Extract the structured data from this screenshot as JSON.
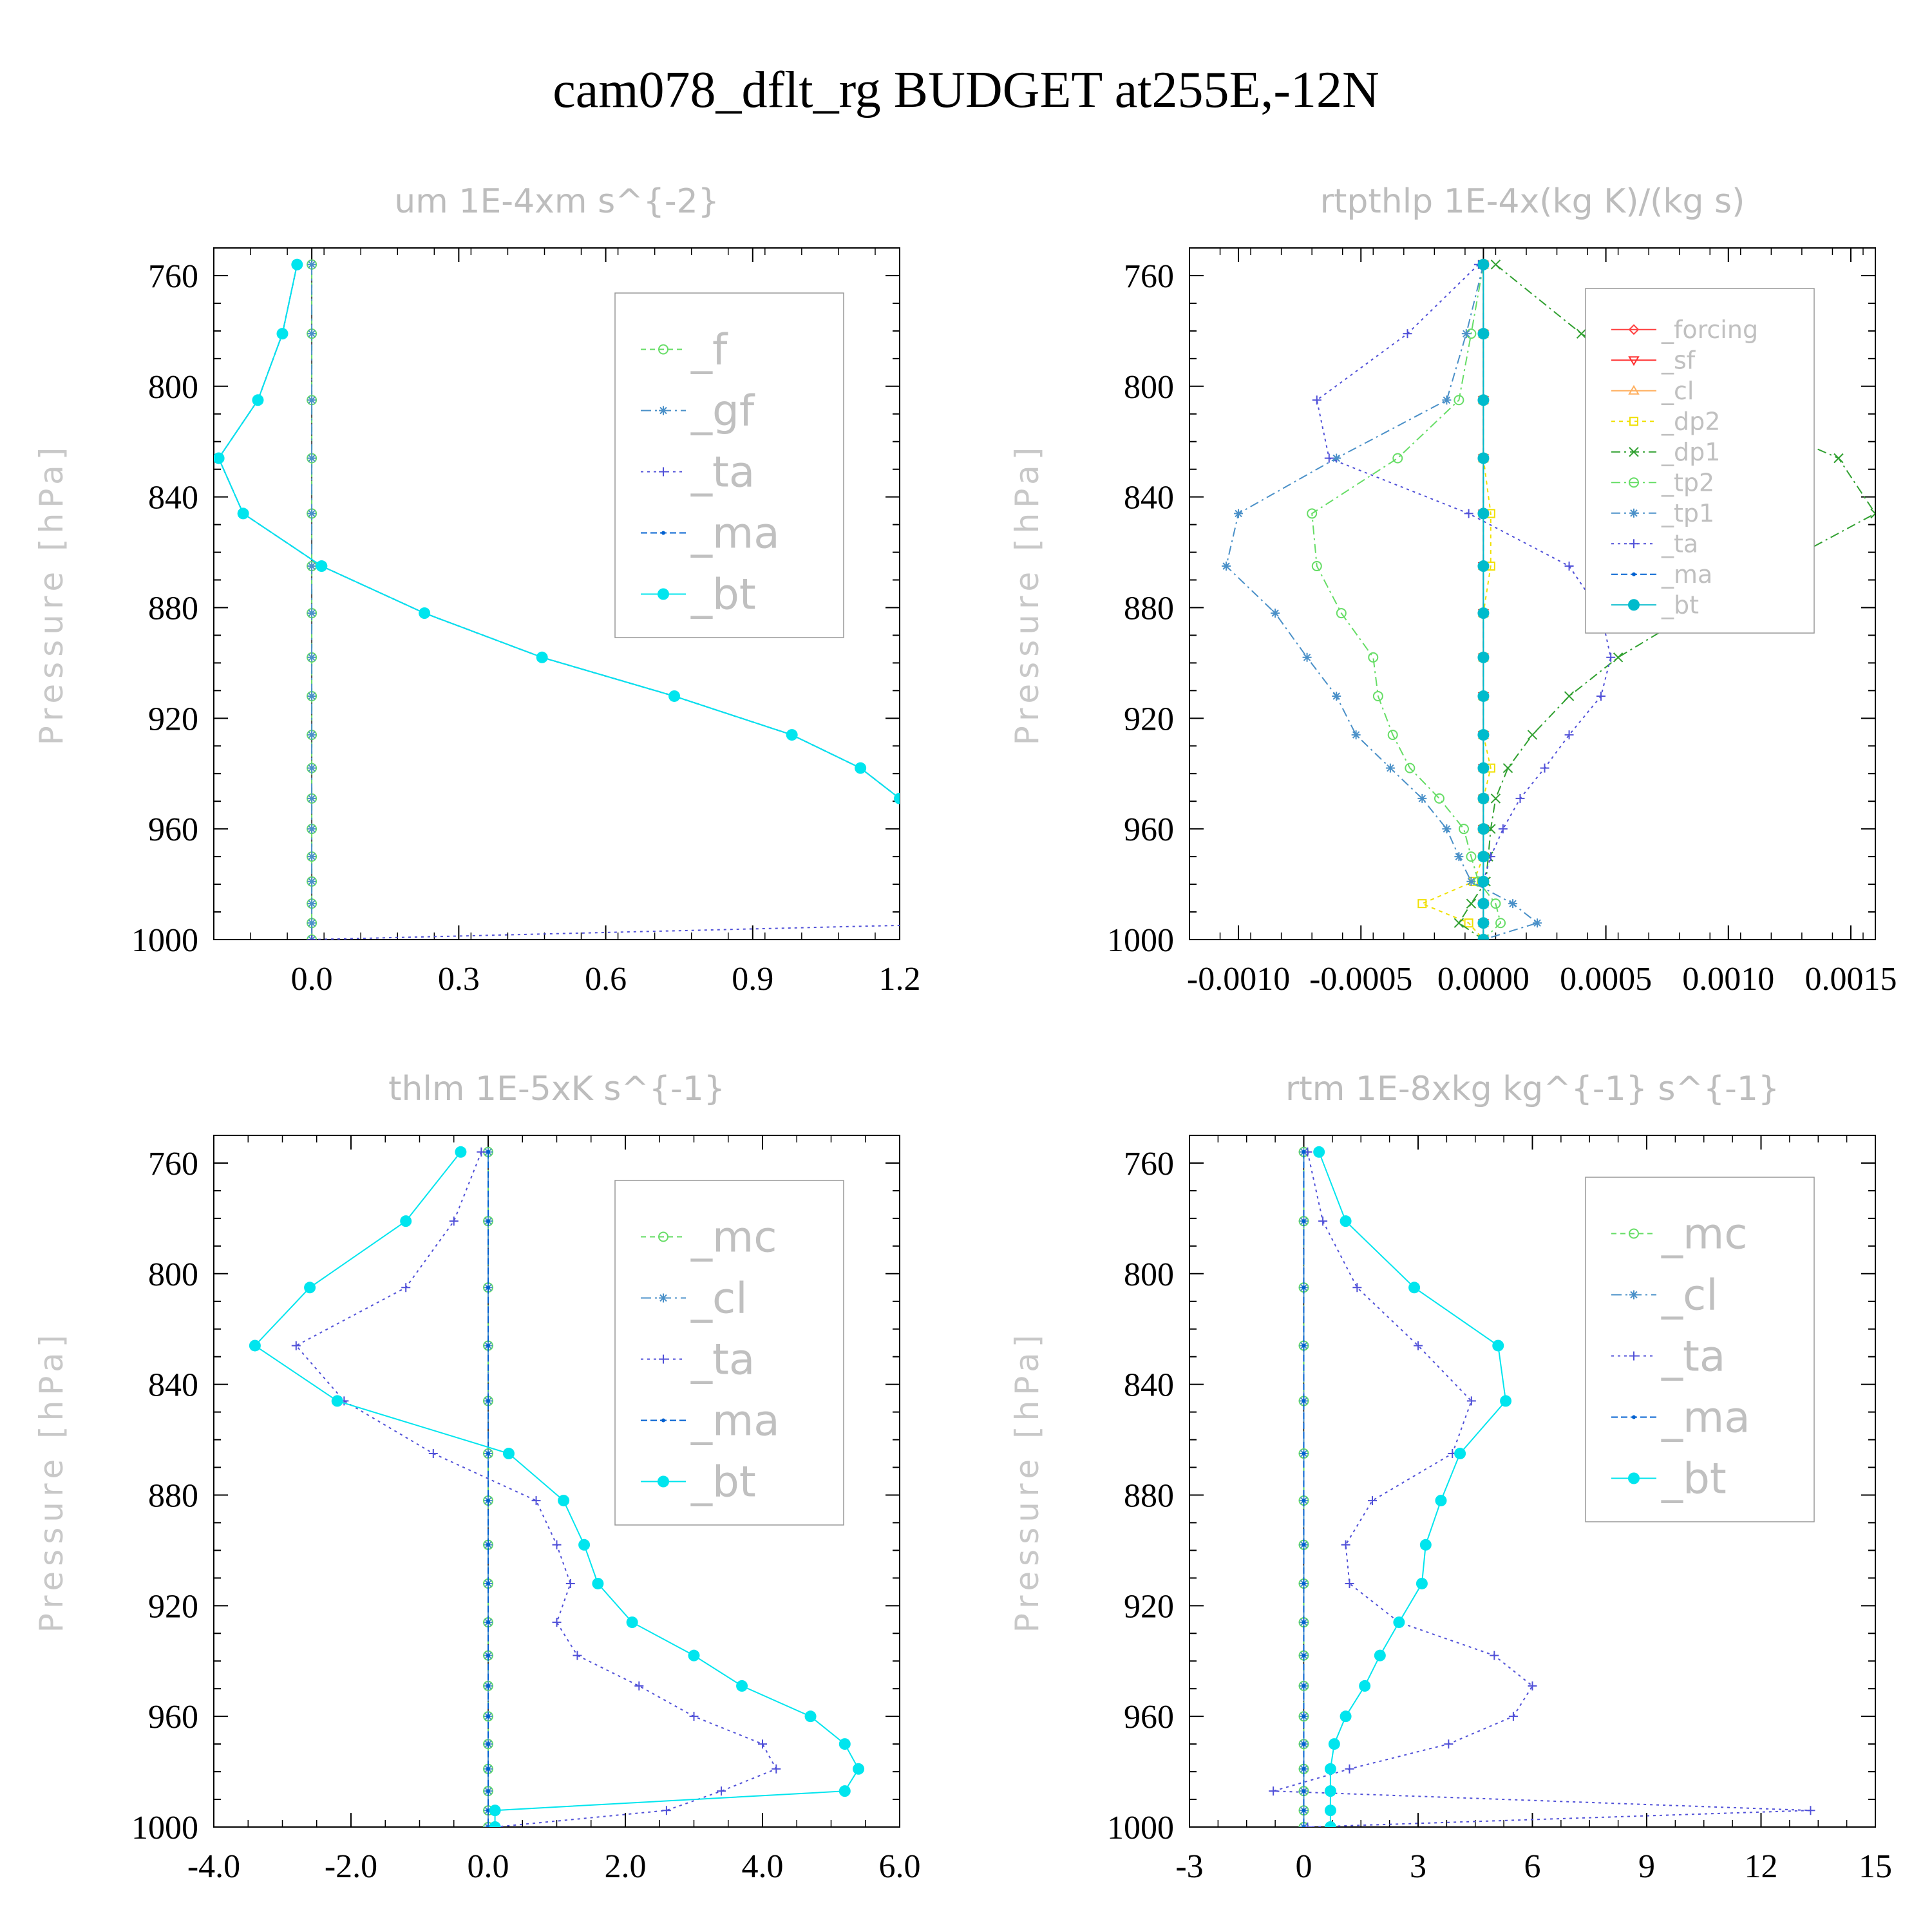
{
  "title": "cam078_dflt_rg  BUDGET at255E,-12N",
  "chart_data": [
    {
      "type": "line",
      "title": "um  1E-4xm s^{-2}",
      "ylabel": "Pressure [hPa]",
      "ylim": [
        750,
        1000
      ],
      "yticks": [
        760,
        800,
        840,
        880,
        920,
        960,
        1000
      ],
      "xlim": [
        -0.2,
        1.2
      ],
      "xticks": [
        0.0,
        0.3,
        0.6,
        0.9,
        1.2
      ],
      "xtick_labels": [
        "0.0",
        "0.3",
        "0.6",
        "0.9",
        "1.2"
      ],
      "legend_size": "large",
      "levels": [
        756,
        781,
        805,
        826,
        846,
        865,
        882,
        898,
        912,
        926,
        938,
        949,
        960,
        970,
        979,
        987,
        994,
        1000
      ],
      "series": [
        {
          "name": "_f",
          "color": "#66dd66",
          "marker": "circle-open",
          "dash": "8,6",
          "values": [
            0,
            0,
            0,
            0,
            0,
            0,
            0,
            0,
            0,
            0,
            0,
            0,
            0,
            0,
            0,
            0,
            0,
            0
          ]
        },
        {
          "name": "_gf",
          "color": "#4a90c8",
          "marker": "star",
          "dash": "16,6,3,6",
          "values": [
            0,
            0,
            0,
            0,
            0,
            0,
            0,
            0,
            0,
            0,
            0,
            0,
            0,
            0,
            0,
            0,
            0,
            0
          ]
        },
        {
          "name": "_ta",
          "color": "#5050d8",
          "marker": "plus",
          "dash": "4,6",
          "values": [
            -0.03,
            -0.06,
            -0.11,
            -0.19,
            -0.14,
            0.02,
            0.23,
            0.47,
            0.74,
            0.98,
            1.12,
            1.2,
            1.25,
            1.3,
            1.35,
            1.38,
            1.4,
            0.0
          ]
        },
        {
          "name": "_ma",
          "color": "#0060d0",
          "marker": "dot",
          "dash": "10,5",
          "values": [
            -0.03,
            -0.06,
            -0.11,
            -0.19,
            -0.14,
            0.02,
            0.23,
            0.47,
            0.74,
            0.98,
            1.12,
            1.2,
            1.25,
            1.3,
            1.35,
            1.38,
            1.4,
            1.4
          ]
        },
        {
          "name": "_bt",
          "color": "#00e5ee",
          "marker": "filled",
          "dash": "",
          "values": [
            -0.03,
            -0.06,
            -0.11,
            -0.19,
            -0.14,
            0.02,
            0.23,
            0.47,
            0.74,
            0.98,
            1.12,
            1.2,
            1.25,
            1.3,
            1.35,
            1.38,
            1.4,
            1.4
          ]
        }
      ]
    },
    {
      "type": "line",
      "title": "rtpthlp  1E-4x(kg K)/(kg s)",
      "ylabel": "Pressure [hPa]",
      "ylim": [
        750,
        1000
      ],
      "yticks": [
        760,
        800,
        840,
        880,
        920,
        960,
        1000
      ],
      "xlim": [
        -0.0012,
        0.0016
      ],
      "xticks": [
        -0.001,
        -0.0005,
        0.0,
        0.0005,
        0.001,
        0.0015
      ],
      "xtick_labels": [
        "-0.0010",
        "-0.0005",
        "0.0000",
        "0.0005",
        "0.0010",
        "0.0015"
      ],
      "legend_size": "small",
      "levels": [
        756,
        781,
        805,
        826,
        846,
        865,
        882,
        898,
        912,
        926,
        938,
        949,
        960,
        970,
        979,
        987,
        994,
        1000
      ],
      "series": [
        {
          "name": "_forcing",
          "color": "#ff4040",
          "marker": "diamond",
          "dash": "",
          "values": [
            0,
            0,
            0,
            0,
            0,
            0,
            0,
            0,
            0,
            0,
            0,
            0,
            0,
            0,
            0,
            0,
            0,
            0
          ]
        },
        {
          "name": "_sf",
          "color": "#ff3030",
          "marker": "triangle-down",
          "dash": "",
          "values": [
            0,
            0,
            0,
            0,
            0,
            0,
            0,
            0,
            0,
            0,
            0,
            0,
            0,
            0,
            0,
            0,
            0,
            0
          ]
        },
        {
          "name": "_cl",
          "color": "#ffb060",
          "marker": "triangle-up",
          "dash": "",
          "values": [
            0,
            0,
            0,
            0,
            0,
            0,
            0,
            0,
            0,
            0,
            0,
            0,
            0,
            0,
            0,
            0,
            0,
            0
          ]
        },
        {
          "name": "_dp2",
          "color": "#f0e000",
          "marker": "square",
          "dash": "6,6",
          "values": [
            0,
            0,
            0,
            0,
            3e-05,
            3e-05,
            0,
            0,
            0,
            0,
            3e-05,
            0,
            0,
            0,
            -4e-05,
            -0.00025,
            -6e-05,
            0
          ]
        },
        {
          "name": "_dp1",
          "color": "#30a030",
          "marker": "x",
          "dash": "14,6,3,6",
          "values": [
            5e-05,
            0.0004,
            0.0009,
            0.00145,
            0.0016,
            0.0012,
            0.00085,
            0.00055,
            0.00035,
            0.0002,
            0.0001,
            5e-05,
            3e-05,
            2e-05,
            1e-05,
            -5e-05,
            -0.0001,
            0
          ]
        },
        {
          "name": "_tp2",
          "color": "#66dd66",
          "marker": "circle-open",
          "dash": "14,6,3,6",
          "values": [
            0,
            -5e-05,
            -0.0001,
            -0.00035,
            -0.0007,
            -0.00068,
            -0.00058,
            -0.00045,
            -0.00043,
            -0.00037,
            -0.0003,
            -0.00018,
            -8e-05,
            -5e-05,
            -2e-05,
            5e-05,
            7e-05,
            0
          ]
        },
        {
          "name": "_tp1",
          "color": "#4a90c8",
          "marker": "star",
          "dash": "14,6,3,6",
          "values": [
            0,
            -7e-05,
            -0.00015,
            -0.0006,
            -0.001,
            -0.00105,
            -0.00085,
            -0.00072,
            -0.0006,
            -0.00052,
            -0.00038,
            -0.00025,
            -0.00015,
            -0.0001,
            -5e-05,
            0.00012,
            0.00022,
            0
          ]
        },
        {
          "name": "_ta",
          "color": "#5050d8",
          "marker": "plus",
          "dash": "4,6",
          "values": [
            -2e-05,
            -0.00031,
            -0.00068,
            -0.00063,
            -6e-05,
            0.00035,
            0.00048,
            0.00052,
            0.00048,
            0.00035,
            0.00025,
            0.00015,
            8e-05,
            3e-05,
            0,
            0,
            0,
            0
          ]
        },
        {
          "name": "_ma",
          "color": "#0060d0",
          "marker": "dot",
          "dash": "10,5",
          "values": [
            0,
            0,
            0,
            0,
            0,
            0,
            0,
            0,
            0,
            0,
            0,
            0,
            0,
            0,
            0,
            0,
            0,
            0
          ]
        },
        {
          "name": "_bt",
          "color": "#00bbcc",
          "marker": "filled",
          "dash": "",
          "values": [
            0,
            0,
            0,
            0,
            0,
            0,
            0,
            0,
            0,
            0,
            0,
            0,
            0,
            0,
            0,
            0,
            0,
            0
          ]
        }
      ]
    },
    {
      "type": "line",
      "title": "thlm  1E-5xK s^{-1}",
      "ylabel": "Pressure [hPa]",
      "ylim": [
        750,
        1000
      ],
      "yticks": [
        760,
        800,
        840,
        880,
        920,
        960,
        1000
      ],
      "xlim": [
        -4.0,
        6.0
      ],
      "xticks": [
        -4.0,
        -2.0,
        0.0,
        2.0,
        4.0,
        6.0
      ],
      "xtick_labels": [
        "-4.0",
        "-2.0",
        "0.0",
        "2.0",
        "4.0",
        "6.0"
      ],
      "legend_size": "large",
      "levels": [
        756,
        781,
        805,
        826,
        846,
        865,
        882,
        898,
        912,
        926,
        938,
        949,
        960,
        970,
        979,
        987,
        994,
        1000
      ],
      "series": [
        {
          "name": "_mc",
          "color": "#66dd66",
          "marker": "circle-open",
          "dash": "8,6",
          "values": [
            0,
            0,
            0,
            0,
            0,
            0,
            0,
            0,
            0,
            0,
            0,
            0,
            0,
            0,
            0,
            0,
            0,
            0
          ]
        },
        {
          "name": "_cl",
          "color": "#4a90c8",
          "marker": "star",
          "dash": "16,6,3,6",
          "values": [
            0,
            0,
            0,
            0,
            0,
            0,
            0,
            0,
            0,
            0,
            0,
            0,
            0,
            0,
            0,
            0,
            0,
            0
          ]
        },
        {
          "name": "_ta",
          "color": "#5050d8",
          "marker": "plus",
          "dash": "4,6",
          "values": [
            -0.1,
            -0.5,
            -1.2,
            -2.8,
            -2.1,
            -0.8,
            0.7,
            1.0,
            1.2,
            1.0,
            1.3,
            2.2,
            3.0,
            4.0,
            4.2,
            3.4,
            2.6,
            0.1
          ]
        },
        {
          "name": "_ma",
          "color": "#0060d0",
          "marker": "dot",
          "dash": "10,5",
          "values": [
            0,
            0,
            0,
            0,
            0,
            0,
            0,
            0,
            0,
            0,
            0,
            0,
            0,
            0,
            0,
            0,
            0,
            0
          ]
        },
        {
          "name": "_bt",
          "color": "#00e5ee",
          "marker": "filled",
          "dash": "",
          "values": [
            -0.4,
            -1.2,
            -2.6,
            -3.4,
            -2.2,
            0.3,
            1.1,
            1.4,
            1.6,
            2.1,
            3.0,
            3.7,
            4.7,
            5.2,
            5.4,
            5.2,
            0.1,
            0.1
          ]
        }
      ]
    },
    {
      "type": "line",
      "title": "rtm  1E-8xkg kg^{-1} s^{-1}",
      "ylabel": "Pressure [hPa]",
      "ylim": [
        750,
        1000
      ],
      "yticks": [
        760,
        800,
        840,
        880,
        920,
        960,
        1000
      ],
      "xlim": [
        -3,
        15
      ],
      "xticks": [
        -3,
        0,
        3,
        6,
        9,
        12,
        15
      ],
      "xtick_labels": [
        "-3",
        "0",
        "3",
        "6",
        "9",
        "12",
        "15"
      ],
      "legend_size": "large",
      "levels": [
        756,
        781,
        805,
        826,
        846,
        865,
        882,
        898,
        912,
        926,
        938,
        949,
        960,
        970,
        979,
        987,
        994,
        1000
      ],
      "series": [
        {
          "name": "_mc",
          "color": "#66dd66",
          "marker": "circle-open",
          "dash": "8,6",
          "values": [
            0,
            0,
            0,
            0,
            0,
            0,
            0,
            0,
            0,
            0,
            0,
            0,
            0,
            0,
            0,
            0,
            0,
            0
          ]
        },
        {
          "name": "_cl",
          "color": "#4a90c8",
          "marker": "star",
          "dash": "16,6,3,6",
          "values": [
            0,
            0,
            0,
            0,
            0,
            0,
            0,
            0,
            0,
            0,
            0,
            0,
            0,
            0,
            0,
            0,
            0,
            0
          ]
        },
        {
          "name": "_ta",
          "color": "#5050d8",
          "marker": "plus",
          "dash": "4,6",
          "values": [
            0.1,
            0.5,
            1.4,
            3.0,
            4.4,
            3.9,
            1.8,
            1.1,
            1.2,
            2.5,
            5.0,
            6.0,
            5.5,
            3.8,
            1.2,
            -0.8,
            13.3,
            0.1
          ]
        },
        {
          "name": "_ma",
          "color": "#0060d0",
          "marker": "dot",
          "dash": "10,5",
          "values": [
            0,
            0,
            0,
            0,
            0,
            0,
            0,
            0,
            0,
            0,
            0,
            0,
            0,
            0,
            0,
            0,
            0,
            0
          ]
        },
        {
          "name": "_bt",
          "color": "#00e5ee",
          "marker": "filled",
          "dash": "",
          "values": [
            0.4,
            1.1,
            2.9,
            5.1,
            5.3,
            4.1,
            3.6,
            3.2,
            3.1,
            2.5,
            2.0,
            1.6,
            1.1,
            0.8,
            0.7,
            0.7,
            0.7,
            0.7
          ]
        }
      ]
    }
  ]
}
